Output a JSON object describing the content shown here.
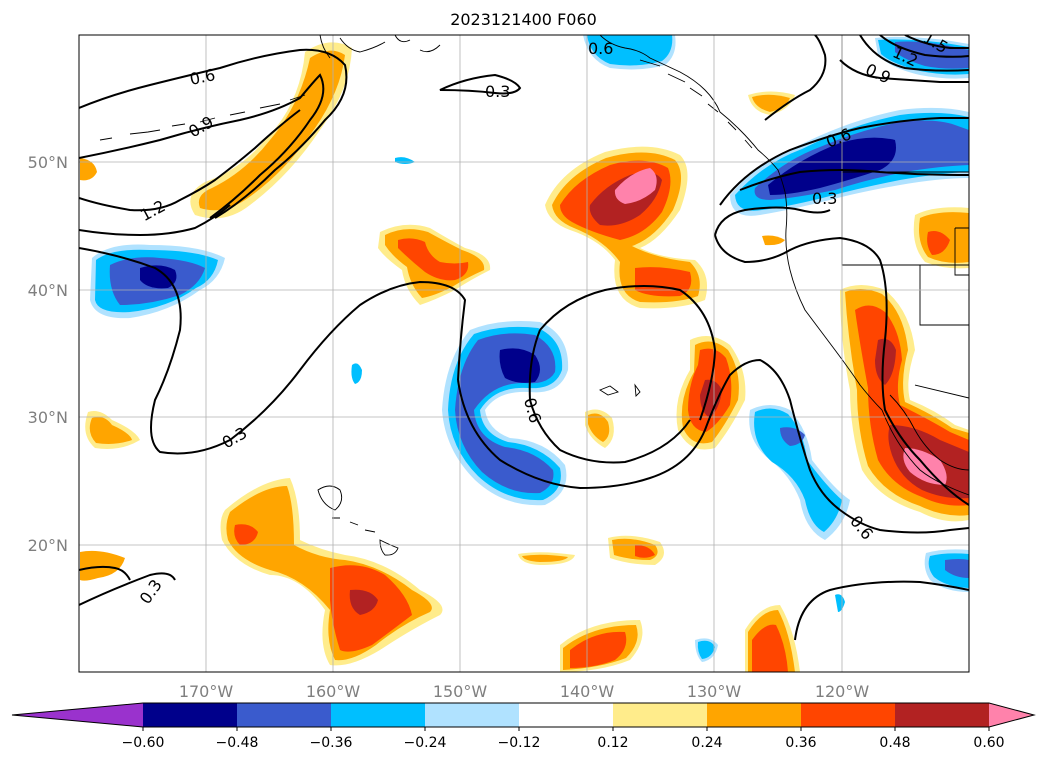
{
  "title": "2023121400 F060",
  "map": {
    "lat_ticks": [
      "50°N",
      "40°N",
      "30°N",
      "20°N"
    ],
    "lon_ticks": [
      "170°W",
      "160°W",
      "150°W",
      "140°W",
      "130°W",
      "120°W"
    ],
    "extent": {
      "lon": [
        -180,
        -110
      ],
      "lat": [
        10,
        60
      ]
    }
  },
  "contour_labels": [
    "0.6",
    "0.9",
    "1.2",
    "0.3",
    "0.3",
    "0.6",
    "0.3",
    "0.6",
    "0.9",
    "1.2",
    "1.5",
    "0.6",
    "0.3",
    "0.6"
  ],
  "colorbar": {
    "ticks": [
      "−0.60",
      "−0.48",
      "−0.36",
      "−0.24",
      "−0.12",
      "0.12",
      "0.24",
      "0.36",
      "0.48",
      "0.60"
    ],
    "colors": [
      "#9a32cd",
      "#00008b",
      "#3a5bcd",
      "#00bfff",
      "#b0e2ff",
      "#ffffff",
      "#ffec8b",
      "#ffa500",
      "#ff4500",
      "#b22222",
      "#ff82ab"
    ]
  }
}
